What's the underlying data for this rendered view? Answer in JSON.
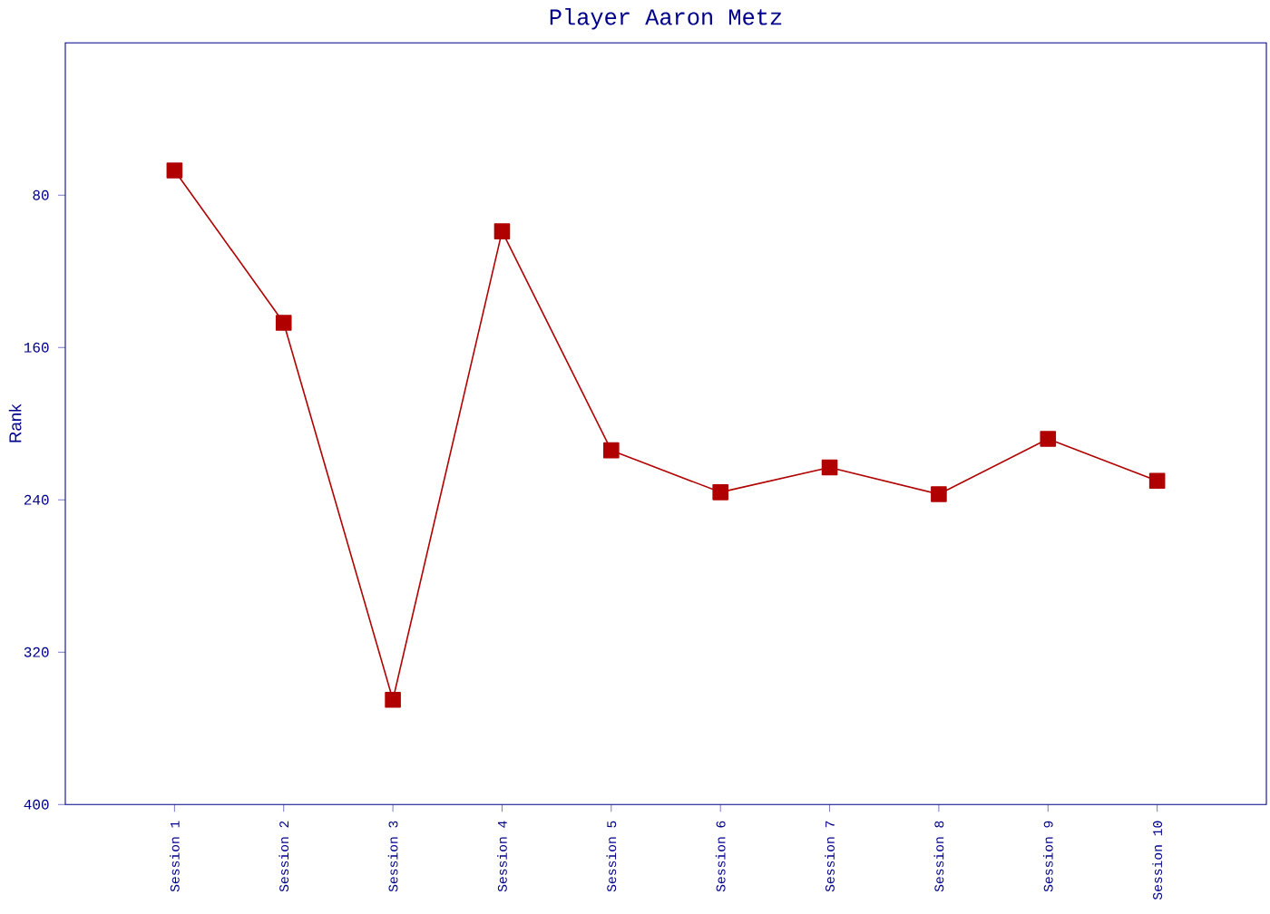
{
  "chart_data": {
    "type": "line",
    "title": "Player Aaron Metz",
    "ylabel": "Rank",
    "categories": [
      "Session 1",
      "Session 2",
      "Session 3",
      "Session 4",
      "Session 5",
      "Session 6",
      "Session 7",
      "Session 8",
      "Session 9",
      "Session 10"
    ],
    "series": [
      {
        "color": "#b00000",
        "values": [
          67,
          147,
          345,
          99,
          214,
          236,
          223,
          237,
          208,
          230
        ]
      }
    ],
    "ylim": [
      400,
      0
    ],
    "yticks": [
      80,
      160,
      240,
      320,
      400
    ],
    "marker": "square",
    "line_style": "solid"
  }
}
